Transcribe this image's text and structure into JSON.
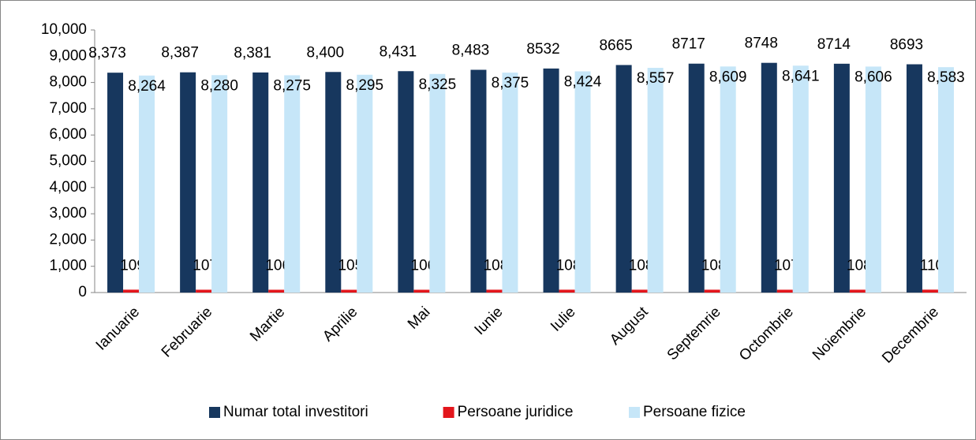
{
  "chart_data": {
    "type": "bar",
    "categories": [
      "Ianuarie",
      "Februarie",
      "Martie",
      "Aprilie",
      "Mai",
      "Iunie",
      "Iulie",
      "August",
      "Septemrie",
      "Octombrie",
      "Noiembrie",
      "Decembrie"
    ],
    "series": [
      {
        "name": "Numar total investitori",
        "color": "#17375e",
        "values": [
          8373,
          8387,
          8381,
          8400,
          8431,
          8483,
          8532,
          8665,
          8717,
          8748,
          8714,
          8693
        ],
        "value_labels": [
          "8,373",
          "8,387",
          "8,381",
          "8,400",
          "8,431",
          "8,483",
          "8532",
          "8665",
          "8717",
          "8748",
          "8714",
          "8693"
        ]
      },
      {
        "name": "Persoane juridice",
        "color": "#e3161c",
        "values": [
          109,
          107,
          106,
          105,
          106,
          108,
          108,
          108,
          108,
          107,
          108,
          110
        ]
      },
      {
        "name": "Persoane fizice",
        "color": "#c6e6f8",
        "values": [
          8264,
          8280,
          8275,
          8295,
          8325,
          8375,
          8424,
          8557,
          8609,
          8641,
          8606,
          8583
        ],
        "value_labels": [
          "8,264",
          "8,280",
          "8,275",
          "8,295",
          "8,325",
          "8,375",
          "8,424",
          "8,557",
          "8,609",
          "8,641",
          "8,606",
          "8,583"
        ]
      }
    ],
    "ylim": [
      0,
      10000
    ],
    "yticks": [
      0,
      {
        "value": 1000,
        "label": "1,000"
      },
      {
        "value": 2000,
        "label": "2,000"
      },
      {
        "value": 3000,
        "label": "3,000"
      },
      {
        "value": 4000,
        "label": "4,000"
      },
      {
        "value": 5000,
        "label": "5,000"
      },
      {
        "value": 6000,
        "label": "6,000"
      },
      {
        "value": 7000,
        "label": "7,000"
      },
      {
        "value": 8000,
        "label": "8,000"
      },
      {
        "value": 9000,
        "label": "9,000"
      },
      {
        "value": 10000,
        "label": "10,000"
      }
    ],
    "grid": false,
    "legend": "bottom"
  }
}
